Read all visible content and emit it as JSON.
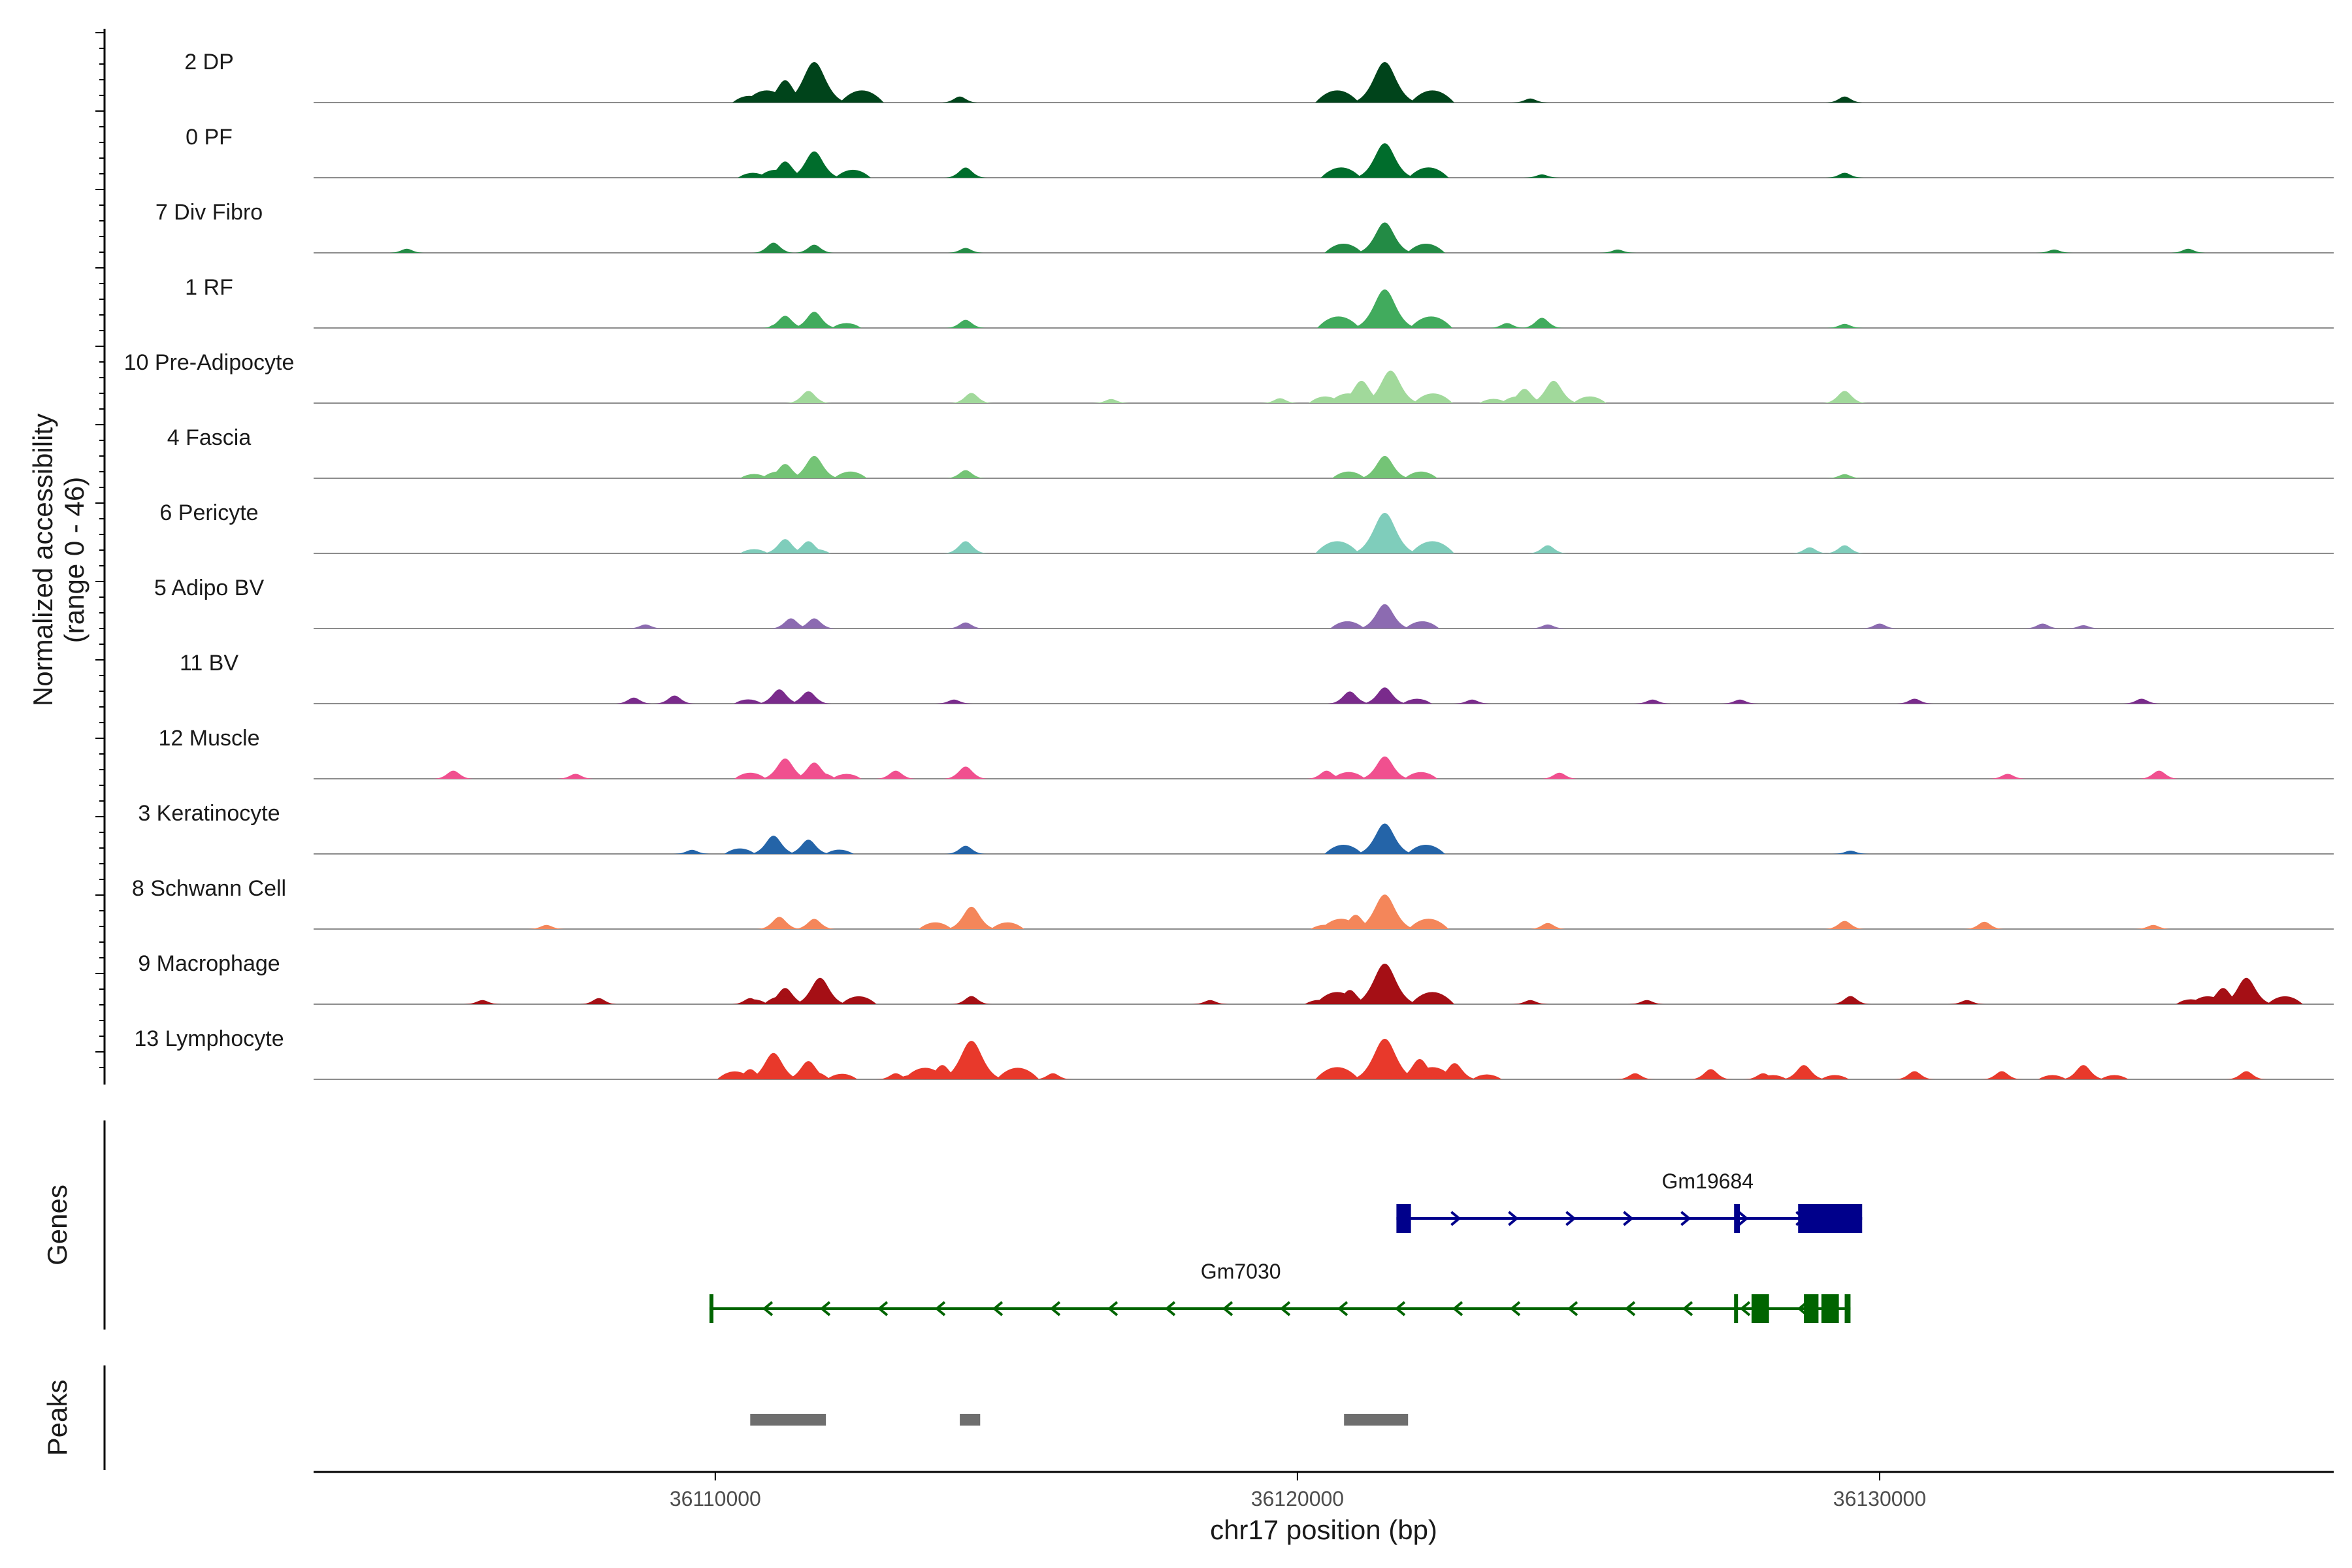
{
  "chart_data": {
    "type": "area",
    "title": "",
    "ylabel_line1": "Normalized accessibility",
    "ylabel_line2": "(range 0 - 46)",
    "y_range": [
      0,
      46
    ],
    "xlabel": "chr17 position (bp)",
    "x_range": [
      36103100,
      36137800
    ],
    "x_ticks": [
      {
        "value": 36110000,
        "label": "36110000"
      },
      {
        "value": 36120000,
        "label": "36120000"
      },
      {
        "value": 36130000,
        "label": "36130000"
      }
    ],
    "tracks": [
      {
        "name": "2 DP",
        "color": "#00441b",
        "peaks": [
          [
            36111200,
            0.55
          ],
          [
            36111700,
            1.0
          ],
          [
            36121500,
            1.0
          ],
          [
            36114200,
            0.15
          ],
          [
            36129400,
            0.15
          ],
          [
            36124000,
            0.1
          ]
        ]
      },
      {
        "name": "0 PF",
        "color": "#006d2c",
        "peaks": [
          [
            36111200,
            0.4
          ],
          [
            36111700,
            0.65
          ],
          [
            36121500,
            0.85
          ],
          [
            36114300,
            0.25
          ],
          [
            36129400,
            0.12
          ],
          [
            36124200,
            0.08
          ]
        ]
      },
      {
        "name": "7 Div Fibro",
        "color": "#238b45",
        "peaks": [
          [
            36111000,
            0.25
          ],
          [
            36111700,
            0.2
          ],
          [
            36121500,
            0.75
          ],
          [
            36114300,
            0.12
          ],
          [
            36125500,
            0.08
          ],
          [
            36133000,
            0.08
          ],
          [
            36135300,
            0.1
          ],
          [
            36104700,
            0.1
          ]
        ]
      },
      {
        "name": "1 RF",
        "color": "#41ab5d",
        "peaks": [
          [
            36111200,
            0.3
          ],
          [
            36111700,
            0.4
          ],
          [
            36121500,
            0.95
          ],
          [
            36114300,
            0.2
          ],
          [
            36124200,
            0.25
          ],
          [
            36123600,
            0.12
          ],
          [
            36129400,
            0.1
          ]
        ]
      },
      {
        "name": "10 Pre-Adipocyte",
        "color": "#a1d99b",
        "peaks": [
          [
            36111600,
            0.3
          ],
          [
            36114400,
            0.25
          ],
          [
            36121100,
            0.55
          ],
          [
            36121600,
            0.8
          ],
          [
            36124400,
            0.55
          ],
          [
            36123900,
            0.35
          ],
          [
            36129400,
            0.3
          ],
          [
            36116800,
            0.1
          ],
          [
            36119700,
            0.12
          ]
        ]
      },
      {
        "name": "4 Fascia",
        "color": "#74c476",
        "peaks": [
          [
            36111200,
            0.35
          ],
          [
            36111700,
            0.55
          ],
          [
            36121500,
            0.55
          ],
          [
            36114300,
            0.2
          ],
          [
            36129400,
            0.1
          ]
        ]
      },
      {
        "name": "6 Pericyte",
        "color": "#7fcdbb",
        "peaks": [
          [
            36111200,
            0.35
          ],
          [
            36111600,
            0.3
          ],
          [
            36121500,
            1.0
          ],
          [
            36114300,
            0.3
          ],
          [
            36124300,
            0.2
          ],
          [
            36128800,
            0.15
          ],
          [
            36129400,
            0.2
          ]
        ]
      },
      {
        "name": "5 Adipo BV",
        "color": "#8c6bb1",
        "peaks": [
          [
            36111300,
            0.25
          ],
          [
            36111700,
            0.25
          ],
          [
            36121500,
            0.6
          ],
          [
            36114300,
            0.15
          ],
          [
            36108800,
            0.1
          ],
          [
            36124300,
            0.1
          ],
          [
            36130000,
            0.12
          ],
          [
            36132800,
            0.12
          ],
          [
            36133500,
            0.08
          ]
        ]
      },
      {
        "name": "11 BV",
        "color": "#7a2b8c",
        "peaks": [
          [
            36111100,
            0.35
          ],
          [
            36111600,
            0.3
          ],
          [
            36108600,
            0.15
          ],
          [
            36109300,
            0.2
          ],
          [
            36120900,
            0.3
          ],
          [
            36121500,
            0.4
          ],
          [
            36114100,
            0.1
          ],
          [
            36127600,
            0.1
          ],
          [
            36130600,
            0.12
          ],
          [
            36134500,
            0.12
          ],
          [
            36123000,
            0.1
          ],
          [
            36126100,
            0.1
          ]
        ]
      },
      {
        "name": "12 Muscle",
        "color": "#f0508f",
        "peaks": [
          [
            36111200,
            0.5
          ],
          [
            36111700,
            0.4
          ],
          [
            36121500,
            0.55
          ],
          [
            36120500,
            0.2
          ],
          [
            36114300,
            0.3
          ],
          [
            36105500,
            0.2
          ],
          [
            36113100,
            0.2
          ],
          [
            36107600,
            0.12
          ],
          [
            36134800,
            0.2
          ],
          [
            36124500,
            0.15
          ],
          [
            36132200,
            0.12
          ]
        ]
      },
      {
        "name": "3 Keratinocyte",
        "color": "#2464a8",
        "peaks": [
          [
            36111000,
            0.45
          ],
          [
            36111600,
            0.35
          ],
          [
            36121500,
            0.75
          ],
          [
            36114300,
            0.2
          ],
          [
            36109600,
            0.1
          ],
          [
            36129500,
            0.08
          ]
        ]
      },
      {
        "name": "8 Schwann Cell",
        "color": "#f4865a",
        "peaks": [
          [
            36111100,
            0.3
          ],
          [
            36111700,
            0.25
          ],
          [
            36114400,
            0.55
          ],
          [
            36121500,
            0.85
          ],
          [
            36121000,
            0.35
          ],
          [
            36129400,
            0.2
          ],
          [
            36131800,
            0.18
          ],
          [
            36124300,
            0.15
          ],
          [
            36107100,
            0.1
          ],
          [
            36134700,
            0.1
          ]
        ]
      },
      {
        "name": "9 Macrophage",
        "color": "#a50f15",
        "peaks": [
          [
            36111200,
            0.4
          ],
          [
            36111800,
            0.65
          ],
          [
            36121500,
            1.0
          ],
          [
            36120900,
            0.35
          ],
          [
            36136300,
            0.65
          ],
          [
            36135900,
            0.4
          ],
          [
            36114400,
            0.2
          ],
          [
            36129500,
            0.2
          ],
          [
            36108000,
            0.15
          ],
          [
            36110600,
            0.15
          ],
          [
            36106000,
            0.1
          ],
          [
            36126000,
            0.1
          ],
          [
            36131500,
            0.1
          ],
          [
            36124000,
            0.1
          ],
          [
            36118500,
            0.1
          ]
        ]
      },
      {
        "name": "13 Lymphocyte",
        "color": "#e8392b",
        "peaks": [
          [
            36111000,
            0.65
          ],
          [
            36111600,
            0.45
          ],
          [
            36110600,
            0.25
          ],
          [
            36114400,
            0.95
          ],
          [
            36113900,
            0.35
          ],
          [
            36121500,
            1.0
          ],
          [
            36122100,
            0.5
          ],
          [
            36122700,
            0.4
          ],
          [
            36128700,
            0.35
          ],
          [
            36133500,
            0.35
          ],
          [
            36127100,
            0.25
          ],
          [
            36130600,
            0.2
          ],
          [
            36132100,
            0.2
          ],
          [
            36136300,
            0.2
          ],
          [
            36113100,
            0.15
          ],
          [
            36115800,
            0.15
          ],
          [
            36120600,
            0.15
          ],
          [
            36125800,
            0.15
          ],
          [
            36128000,
            0.15
          ]
        ]
      }
    ],
    "genes": [
      {
        "name": "Gm19684",
        "strand": "+",
        "color": "#00008b",
        "start": 36121700,
        "end": 36129700,
        "exons": [
          [
            36121700,
            36121950
          ],
          [
            36127500,
            36127600
          ],
          [
            36128600,
            36129700
          ]
        ]
      },
      {
        "name": "Gm7030",
        "strand": "-",
        "color": "#006400",
        "start": 36109900,
        "end": 36129500,
        "exons": [
          [
            36109900,
            36109950
          ],
          [
            36127500,
            36127550
          ],
          [
            36127800,
            36128100
          ],
          [
            36128700,
            36128950
          ],
          [
            36129000,
            36129300
          ],
          [
            36129400,
            36129500
          ]
        ]
      }
    ],
    "peaks_track": [
      {
        "start": 36110600,
        "end": 36111900
      },
      {
        "start": 36114200,
        "end": 36114550
      },
      {
        "start": 36120800,
        "end": 36121900
      }
    ],
    "peak_color": "#6e6e6e",
    "side_titles": {
      "genes": "Genes",
      "peaks": "Peaks"
    }
  }
}
